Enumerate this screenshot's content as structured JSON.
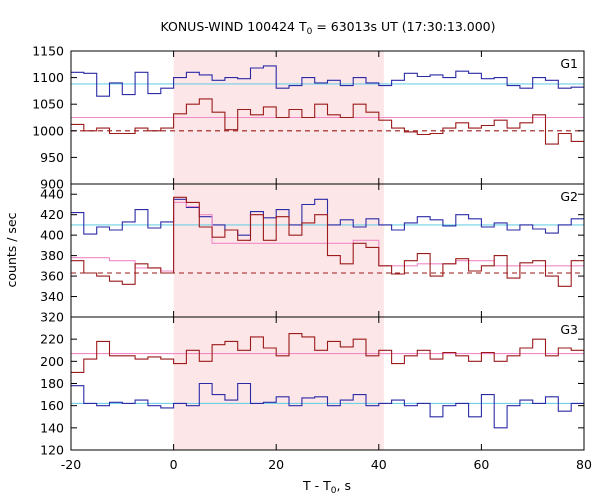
{
  "title_main": "KONUS-WIND 100424 T",
  "title_sub": "0",
  "title_rest": " = 63013s UT (17:30:13.000)",
  "ylabel": "counts / sec",
  "xlabel_main": "T - T",
  "xlabel_sub": "0",
  "xlabel_rest": ", s",
  "colors": {
    "shade": "#fde6e8",
    "dark_red": "#9b1a1a",
    "blue": "#2b2ba6",
    "pink": "#f08ac8",
    "cyan": "#6fd0e6"
  },
  "chart_data": {
    "type": "line",
    "x_range": [
      -20,
      80
    ],
    "x_ticks": [
      -20,
      0,
      20,
      40,
      60,
      80
    ],
    "shaded_interval": [
      0,
      41
    ],
    "panels": [
      {
        "label": "G1",
        "ylim": [
          900,
          1150
        ],
        "yticks": [
          900,
          950,
          1000,
          1050,
          1100,
          1150
        ],
        "hlines": [
          {
            "name": "blue-level",
            "value": 1088,
            "color": "cyan",
            "dashed": false
          },
          {
            "name": "red-level",
            "value": 1025,
            "color": "pink",
            "dashed": false
          },
          {
            "name": "red-background",
            "value": 1000,
            "color": "dark_red",
            "dashed": true
          }
        ],
        "series": [
          {
            "color": "blue",
            "x": [
              -20,
              -17.5,
              -15,
              -12.5,
              -10,
              -7.5,
              -5,
              -2.5,
              0,
              2.5,
              5,
              7.5,
              10,
              12.5,
              15,
              17.5,
              20,
              22.5,
              25,
              27.5,
              30,
              32.5,
              35,
              37.5,
              40,
              42.5,
              45,
              47.5,
              50,
              52.5,
              55,
              57.5,
              60,
              62.5,
              65,
              67.5,
              70,
              72.5,
              75,
              77.5,
              80
            ],
            "y": [
              1110,
              1108,
              1065,
              1090,
              1068,
              1110,
              1070,
              1080,
              1100,
              1110,
              1105,
              1095,
              1100,
              1098,
              1118,
              1122,
              1080,
              1085,
              1100,
              1090,
              1095,
              1085,
              1100,
              1090,
              1085,
              1095,
              1108,
              1102,
              1105,
              1100,
              1112,
              1108,
              1098,
              1100,
              1085,
              1080,
              1100,
              1095,
              1080,
              1082,
              1080
            ]
          },
          {
            "color": "dark_red",
            "x": [
              -20,
              -17.5,
              -15,
              -12.5,
              -10,
              -7.5,
              -5,
              -2.5,
              0,
              2.5,
              5,
              7.5,
              10,
              12.5,
              15,
              17.5,
              20,
              22.5,
              25,
              27.5,
              30,
              32.5,
              35,
              37.5,
              40,
              42.5,
              45,
              47.5,
              50,
              52.5,
              55,
              57.5,
              60,
              62.5,
              65,
              67.5,
              70,
              72.5,
              75,
              77.5,
              80
            ],
            "y": [
              1012,
              1000,
              1005,
              995,
              995,
              1005,
              1000,
              1005,
              1032,
              1050,
              1060,
              1035,
              1002,
              1040,
              1030,
              1045,
              1025,
              1040,
              1025,
              1050,
              1030,
              1025,
              1050,
              1035,
              1020,
              1005,
              998,
              993,
              995,
              1005,
              1015,
              1005,
              1010,
              1020,
              1005,
              1015,
              1030,
              975,
              995,
              980,
              1020
            ]
          }
        ]
      },
      {
        "label": "G2",
        "ylim": [
          320,
          450
        ],
        "yticks": [
          320,
          340,
          360,
          380,
          400,
          420,
          440
        ],
        "hlines": [
          {
            "name": "blue-level",
            "value": 410,
            "color": "cyan",
            "dashed": false
          },
          {
            "name": "red-background",
            "value": 363,
            "color": "dark_red",
            "dashed": true
          }
        ],
        "series": [
          {
            "color": "blue",
            "x": [
              -20,
              -17.5,
              -15,
              -12.5,
              -10,
              -7.5,
              -5,
              -2.5,
              0,
              2.5,
              5,
              7.5,
              10,
              12.5,
              15,
              17.5,
              20,
              22.5,
              25,
              27.5,
              30,
              32.5,
              35,
              37.5,
              40,
              42.5,
              45,
              47.5,
              50,
              52.5,
              55,
              57.5,
              60,
              62.5,
              65,
              67.5,
              70,
              72.5,
              75,
              77.5,
              80
            ],
            "y": [
              422,
              401,
              408,
              405,
              413,
              425,
              407,
              413,
              435,
              427,
              418,
              410,
              405,
              400,
              423,
              417,
              425,
              410,
              430,
              435,
              410,
              415,
              408,
              416,
              410,
              405,
              412,
              418,
              415,
              409,
              420,
              416,
              408,
              412,
              405,
              410,
              406,
              402,
              410,
              416,
              410
            ]
          },
          {
            "color": "pink",
            "x": [
              -20,
              -17.5,
              -15,
              -12.5,
              -10,
              -7.5,
              -5,
              -2.5,
              0,
              2.5,
              5,
              7.5,
              10,
              12.5,
              15,
              17.5,
              20,
              22.5,
              25,
              27.5,
              30,
              32.5,
              35,
              37.5,
              40,
              42.5,
              45,
              47.5,
              50,
              52.5,
              55,
              57.5,
              60,
              62.5,
              65,
              67.5,
              70,
              72.5,
              75,
              77.5,
              80
            ],
            "y": [
              378,
              378,
              378,
              375,
              375,
              368,
              368,
              365,
              432,
              428,
              420,
              392,
              392,
              392,
              392,
              392,
              392,
              392,
              392,
              392,
              392,
              392,
              395,
              395,
              370,
              370,
              370,
              372,
              372,
              372,
              375,
              375,
              375,
              370,
              370,
              370,
              370,
              370,
              370,
              370,
              370
            ]
          },
          {
            "color": "dark_red",
            "x": [
              -20,
              -17.5,
              -15,
              -12.5,
              -10,
              -7.5,
              -5,
              -2.5,
              0,
              2.5,
              5,
              7.5,
              10,
              12.5,
              15,
              17.5,
              20,
              22.5,
              25,
              27.5,
              30,
              32.5,
              35,
              37.5,
              40,
              42.5,
              45,
              47.5,
              50,
              52.5,
              55,
              57.5,
              60,
              62.5,
              65,
              67.5,
              70,
              72.5,
              75,
              77.5,
              80
            ],
            "y": [
              375,
              363,
              360,
              355,
              352,
              372,
              368,
              363,
              437,
              432,
              408,
              398,
              405,
              395,
              420,
              395,
              418,
              400,
              412,
              420,
              380,
              372,
              392,
              388,
              370,
              362,
              375,
              382,
              360,
              372,
              377,
              365,
              370,
              380,
              358,
              373,
              375,
              360,
              350,
              375,
              358
            ]
          }
        ]
      },
      {
        "label": "G3",
        "ylim": [
          120,
          240
        ],
        "yticks": [
          120,
          140,
          160,
          180,
          200,
          220
        ],
        "hlines": [
          {
            "name": "red-level",
            "value": 207,
            "color": "pink",
            "dashed": false
          },
          {
            "name": "blue-level",
            "value": 162,
            "color": "cyan",
            "dashed": false
          }
        ],
        "series": [
          {
            "color": "dark_red",
            "x": [
              -20,
              -17.5,
              -15,
              -12.5,
              -10,
              -7.5,
              -5,
              -2.5,
              0,
              2.5,
              5,
              7.5,
              10,
              12.5,
              15,
              17.5,
              20,
              22.5,
              25,
              27.5,
              30,
              32.5,
              35,
              37.5,
              40,
              42.5,
              45,
              47.5,
              50,
              52.5,
              55,
              57.5,
              60,
              62.5,
              65,
              67.5,
              70,
              72.5,
              75,
              77.5,
              80
            ],
            "y": [
              190,
              202,
              218,
              205,
              205,
              202,
              204,
              202,
              198,
              210,
              200,
              215,
              218,
              210,
              222,
              212,
              205,
              225,
              222,
              210,
              218,
              213,
              220,
              205,
              210,
              198,
              205,
              210,
              202,
              208,
              205,
              200,
              208,
              200,
              205,
              212,
              220,
              205,
              212,
              210,
              208
            ]
          },
          {
            "color": "blue",
            "x": [
              -20,
              -17.5,
              -15,
              -12.5,
              -10,
              -7.5,
              -5,
              -2.5,
              0,
              2.5,
              5,
              7.5,
              10,
              12.5,
              15,
              17.5,
              20,
              22.5,
              25,
              27.5,
              30,
              32.5,
              35,
              37.5,
              40,
              42.5,
              45,
              47.5,
              50,
              52.5,
              55,
              57.5,
              60,
              62.5,
              65,
              67.5,
              70,
              72.5,
              75,
              77.5,
              80
            ],
            "y": [
              178,
              162,
              160,
              163,
              162,
              165,
              160,
              158,
              162,
              160,
              180,
              170,
              165,
              180,
              162,
              163,
              168,
              160,
              167,
              168,
              160,
              165,
              170,
              160,
              162,
              165,
              160,
              162,
              150,
              160,
              162,
              150,
              170,
              140,
              160,
              165,
              162,
              168,
              155,
              162,
              160
            ]
          }
        ]
      }
    ]
  }
}
